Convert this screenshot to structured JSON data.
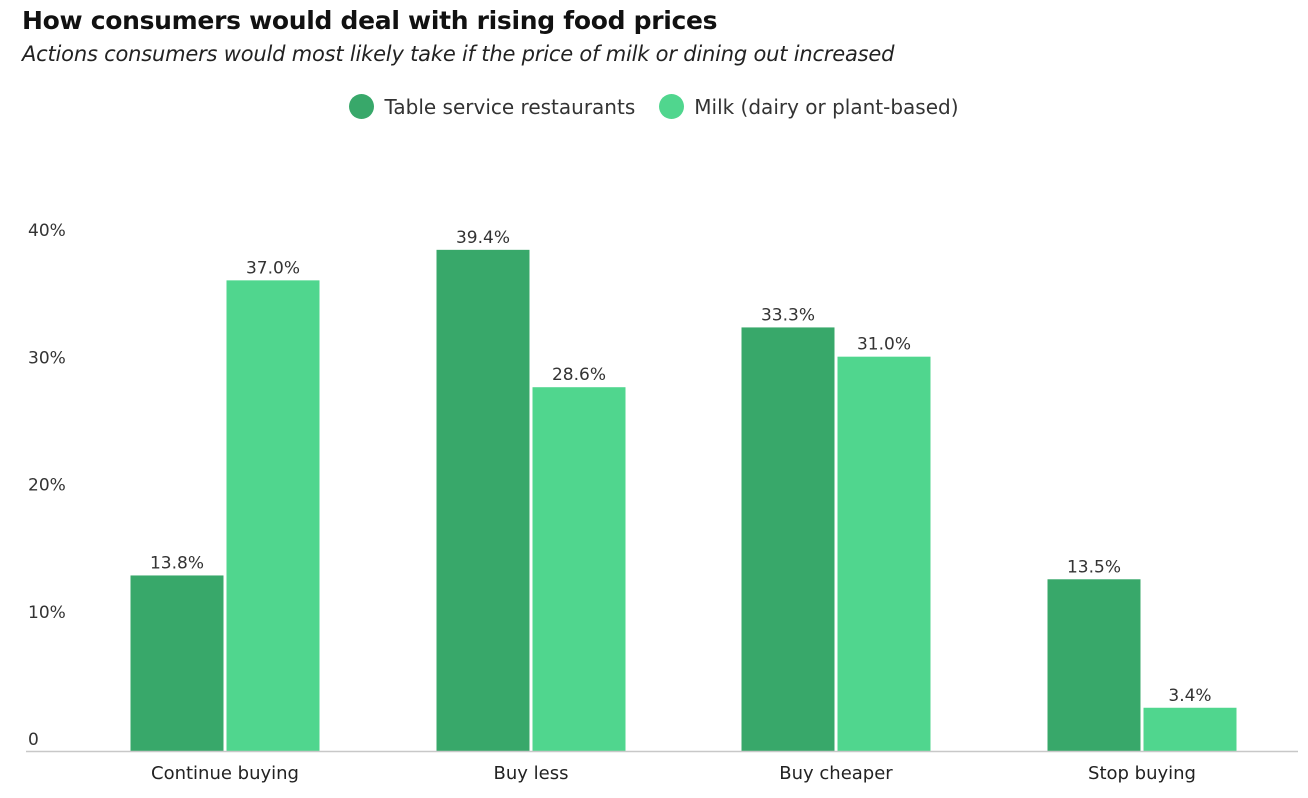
{
  "chart_data": {
    "type": "bar",
    "title": "How consumers would deal with rising food prices",
    "subtitle": "Actions consumers would most likely take if the price of milk or dining out increased",
    "categories": [
      "Continue buying",
      "Buy less",
      "Buy cheaper",
      "Stop buying"
    ],
    "series": [
      {
        "name": "Table service restaurants",
        "color": "#38a86a",
        "values": [
          13.8,
          39.4,
          33.3,
          13.5
        ],
        "labels": [
          "13.8%",
          "39.4%",
          "33.3%",
          "13.5%"
        ]
      },
      {
        "name": "Milk (dairy or plant-based)",
        "color": "#50d68e",
        "values": [
          37.0,
          28.6,
          31.0,
          3.4
        ],
        "labels": [
          "37.0%",
          "28.6%",
          "31.0%",
          "3.4%"
        ]
      }
    ],
    "ylim": [
      0,
      41
    ],
    "yticks": [
      0,
      10,
      20,
      30,
      40
    ],
    "ytick_labels": [
      "0",
      "10%",
      "20%",
      "30%",
      "40%"
    ],
    "xlabel": "",
    "ylabel": "",
    "grid": false,
    "legend_position": "top-center"
  }
}
